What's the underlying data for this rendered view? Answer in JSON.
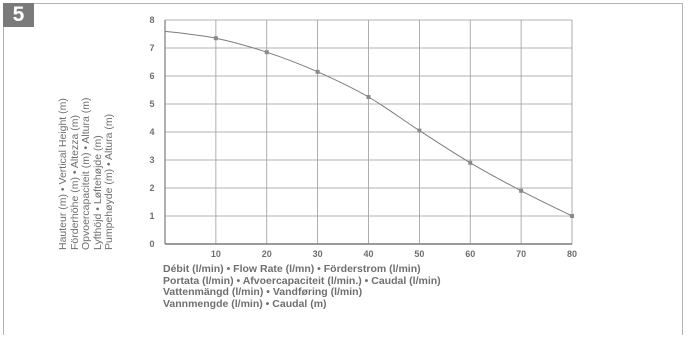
{
  "figure": {
    "number": "5"
  },
  "chart_data": {
    "type": "line",
    "x": [
      0,
      10,
      20,
      30,
      40,
      50,
      60,
      70,
      80
    ],
    "series": [
      {
        "values": [
          7.6,
          7.35,
          6.85,
          6.15,
          5.25,
          4.05,
          2.9,
          1.9,
          1.0
        ]
      }
    ],
    "xlim": [
      0,
      80
    ],
    "ylim": [
      0,
      8
    ],
    "x_ticks": [
      "10",
      "20",
      "30",
      "40",
      "50",
      "60",
      "70",
      "80"
    ],
    "y_ticks": [
      "0",
      "1",
      "2",
      "3",
      "4",
      "5",
      "6",
      "7",
      "8"
    ],
    "grid": true,
    "ylabel_lines": [
      "Hauteur (m) • Vertical Height (m)",
      "Förderhöhe (m) • Altezza (m)",
      "Opvoercapaciteit (m) • Altura (m)",
      "Lyfthöjd • Løftehøjde (m)",
      "Pumpehøyde (m) • Altura (m)"
    ],
    "xlabel_lines": [
      "Débit (l/min) • Flow Rate (l/mn) • Förderstrom (l/min)",
      "Portata (l/min) • Afvoercapaciteit (l/min.) • Caudal (l/min)",
      "Vattenmängd (l/min) • Vandføring (l/min)",
      "Vannmengde (l/min) • Caudal (m)"
    ],
    "colors": {
      "line": "#7d7d7d",
      "grid": "#9a9a9a",
      "marker": "#8a8a8a"
    }
  }
}
